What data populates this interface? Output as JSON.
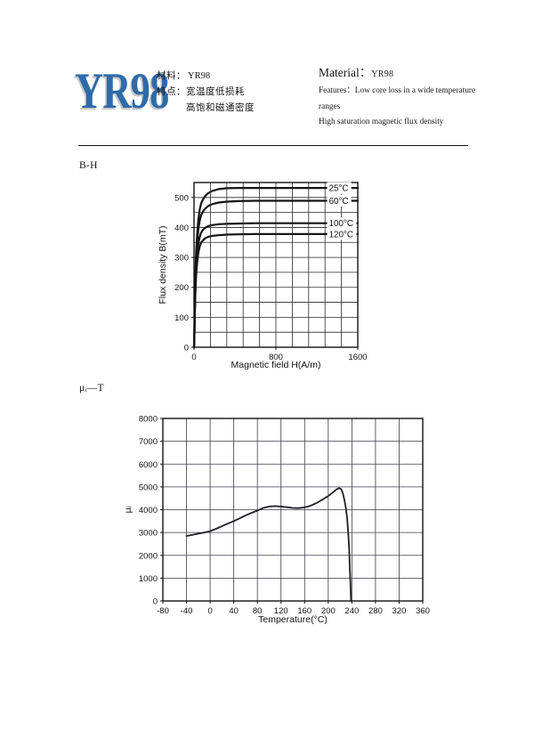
{
  "header": {
    "logo": "YR98",
    "cn": {
      "material_label": "材料：",
      "material_value": "YR98",
      "features_label": "特点：",
      "features_line1": "宽温度低损耗",
      "features_line2": "高饱和磁通密度"
    },
    "en": {
      "material_label": "Material：",
      "material_value": "YR98",
      "features_line1": "Features：Low core loss in a wide temperature",
      "features_line2": "ranges",
      "features_line3": "High saturation magnetic flux density"
    }
  },
  "sections": {
    "bh_label": "B-H",
    "mu_label": "μᵢ—T"
  },
  "colors": {
    "logo_blue": "#2e6ba8",
    "ink": "#161616",
    "grid_bh": "#2a2a2a",
    "grid_mu": "#3c3c4a",
    "curve_bh": "#141414",
    "curve_mu": "#1e1e28"
  },
  "chart_data": [
    {
      "id": "bh",
      "type": "line",
      "title": "B-H",
      "xlabel": "Magnetic field H(A/m)",
      "ylabel": "Flux density B(mT)",
      "xlim": [
        0,
        1600
      ],
      "ylim": [
        0,
        550
      ],
      "grid": true,
      "x_grid_step": 160,
      "y_grid_step": 50,
      "x_tick_labels": [
        0,
        800,
        1600
      ],
      "y_tick_step": 100,
      "legend_position": "inside-right",
      "series": [
        {
          "name": "25°C",
          "label_at": [
            1318,
            532
          ],
          "points": [
            [
              0,
              0
            ],
            [
              4,
              60
            ],
            [
              8,
              140
            ],
            [
              12,
              215
            ],
            [
              16,
              268
            ],
            [
              22,
              325
            ],
            [
              30,
              375
            ],
            [
              42,
              425
            ],
            [
              55,
              458
            ],
            [
              70,
              480
            ],
            [
              90,
              495
            ],
            [
              110,
              505
            ],
            [
              140,
              515
            ],
            [
              180,
              522
            ],
            [
              240,
              528
            ],
            [
              320,
              531
            ],
            [
              430,
              532
            ],
            [
              600,
              532
            ],
            [
              900,
              532
            ],
            [
              1600,
              532
            ]
          ]
        },
        {
          "name": "60°C",
          "label_at": [
            1318,
            489
          ],
          "points": [
            [
              0,
              0
            ],
            [
              4,
              55
            ],
            [
              8,
              130
            ],
            [
              12,
              200
            ],
            [
              16,
              248
            ],
            [
              22,
              300
            ],
            [
              30,
              348
            ],
            [
              42,
              392
            ],
            [
              55,
              421
            ],
            [
              70,
              441
            ],
            [
              90,
              455
            ],
            [
              110,
              463
            ],
            [
              140,
              472
            ],
            [
              180,
              478
            ],
            [
              240,
              483
            ],
            [
              320,
              486
            ],
            [
              430,
              488
            ],
            [
              600,
              489
            ],
            [
              1600,
              489
            ]
          ]
        },
        {
          "name": "100°C",
          "label_at": [
            1318,
            414
          ],
          "points": [
            [
              0,
              0
            ],
            [
              4,
              50
            ],
            [
              8,
              118
            ],
            [
              12,
              180
            ],
            [
              16,
              222
            ],
            [
              22,
              268
            ],
            [
              30,
              308
            ],
            [
              42,
              344
            ],
            [
              55,
              367
            ],
            [
              70,
              383
            ],
            [
              90,
              393
            ],
            [
              110,
              399
            ],
            [
              140,
              405
            ],
            [
              180,
              408
            ],
            [
              240,
              411
            ],
            [
              320,
              412
            ],
            [
              430,
              413
            ],
            [
              600,
              414
            ],
            [
              1600,
              414
            ]
          ]
        },
        {
          "name": "120°C",
          "label_at": [
            1318,
            378
          ],
          "points": [
            [
              0,
              0
            ],
            [
              4,
              46
            ],
            [
              8,
              108
            ],
            [
              12,
              165
            ],
            [
              16,
              204
            ],
            [
              22,
              246
            ],
            [
              30,
              282
            ],
            [
              42,
              314
            ],
            [
              55,
              335
            ],
            [
              70,
              349
            ],
            [
              90,
              358
            ],
            [
              110,
              364
            ],
            [
              140,
              369
            ],
            [
              180,
              372
            ],
            [
              240,
              374
            ],
            [
              320,
              376
            ],
            [
              430,
              377
            ],
            [
              600,
              378
            ],
            [
              1600,
              378
            ]
          ]
        }
      ]
    },
    {
      "id": "mu",
      "type": "line",
      "title": "μᵢ—T",
      "xlabel": "Temperature(°C)",
      "ylabel": "μᵢ",
      "xlim": [
        -80,
        360
      ],
      "ylim": [
        0,
        8000
      ],
      "grid": true,
      "x_grid_step": 40,
      "y_grid_step": 1000,
      "x_tick_step": 40,
      "y_tick_step": 1000,
      "series": [
        {
          "name": "μi",
          "points": [
            [
              -40,
              2850
            ],
            [
              -30,
              2900
            ],
            [
              -20,
              2950
            ],
            [
              -10,
              3000
            ],
            [
              0,
              3060
            ],
            [
              10,
              3160
            ],
            [
              20,
              3280
            ],
            [
              30,
              3390
            ],
            [
              40,
              3500
            ],
            [
              50,
              3620
            ],
            [
              60,
              3750
            ],
            [
              70,
              3860
            ],
            [
              80,
              3960
            ],
            [
              90,
              4080
            ],
            [
              100,
              4140
            ],
            [
              110,
              4155
            ],
            [
              120,
              4140
            ],
            [
              130,
              4110
            ],
            [
              140,
              4080
            ],
            [
              150,
              4070
            ],
            [
              160,
              4100
            ],
            [
              170,
              4170
            ],
            [
              180,
              4290
            ],
            [
              190,
              4440
            ],
            [
              200,
              4600
            ],
            [
              208,
              4760
            ],
            [
              214,
              4890
            ],
            [
              218,
              4950
            ],
            [
              222,
              4900
            ],
            [
              225,
              4700
            ],
            [
              228,
              4350
            ],
            [
              230,
              4050
            ],
            [
              232,
              3600
            ],
            [
              234,
              2900
            ],
            [
              235.5,
              2200
            ],
            [
              236.5,
              1500
            ],
            [
              237.5,
              800
            ],
            [
              238.5,
              0
            ]
          ]
        }
      ]
    }
  ]
}
